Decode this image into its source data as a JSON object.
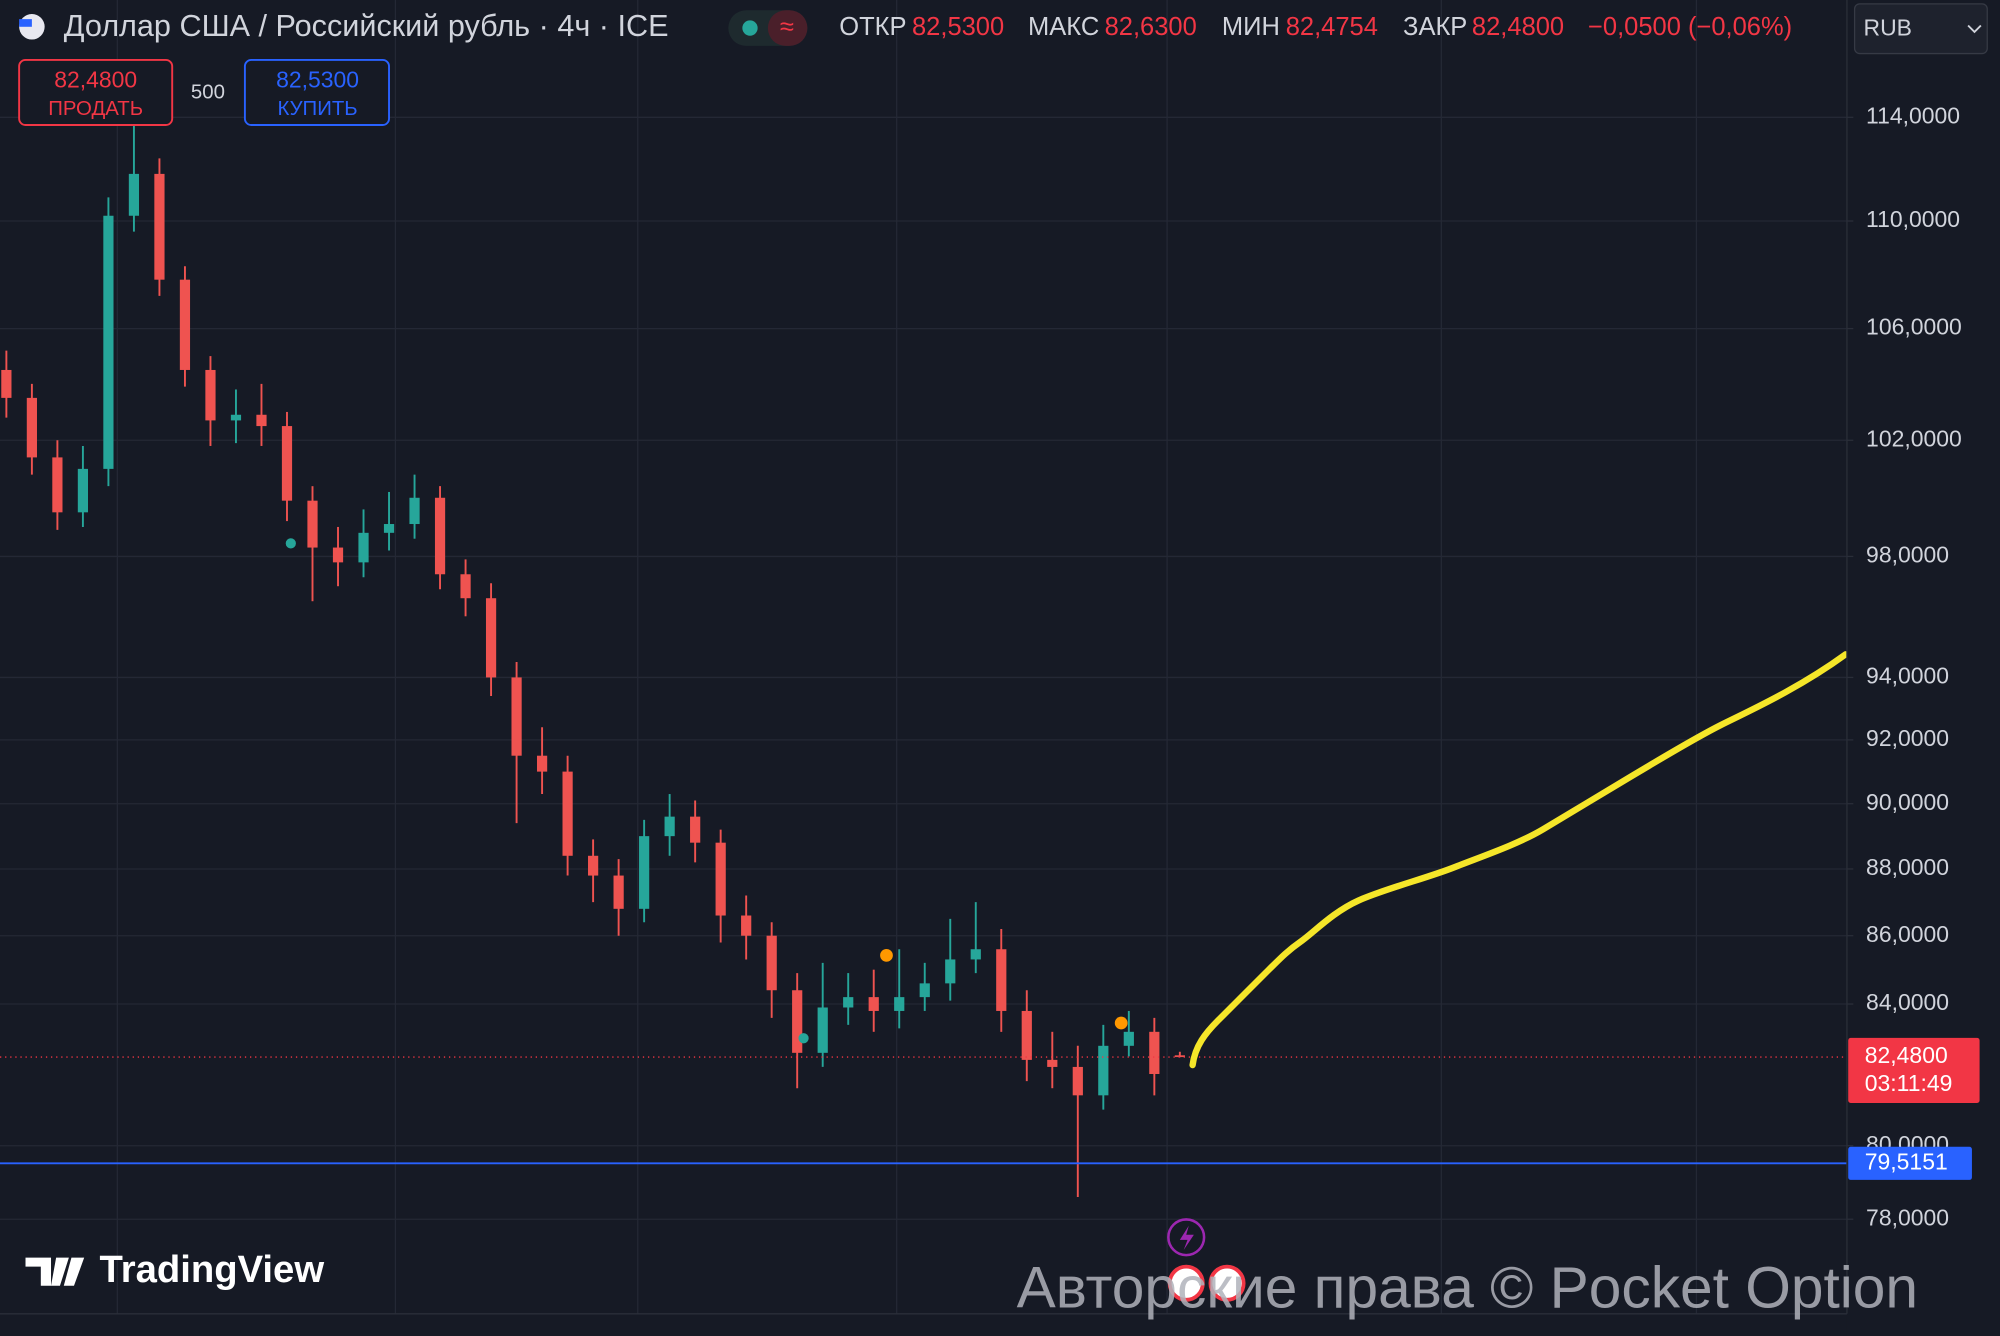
{
  "toolbar": {
    "title": "Доллар США / Российский рубль · 4ч · ICE",
    "ohlc": [
      {
        "label": "ОТКР",
        "value": "82,5300"
      },
      {
        "label": "МАКС",
        "value": "82,6300"
      },
      {
        "label": "МИН",
        "value": "82,4754"
      },
      {
        "label": "ЗАКР",
        "value": "82,4800"
      }
    ],
    "change": "−0,0500 (−0,06%)",
    "currency": "RUB",
    "sell": {
      "price": "82,4800",
      "label": "ПРОДАТЬ"
    },
    "quantity": "500",
    "buy": {
      "price": "82,5300",
      "label": "КУПИТЬ"
    },
    "logo": "TradingView",
    "watermark": "Авторские права © Pocket Option"
  },
  "chart_data": {
    "type": "candlestick",
    "log_scale": true,
    "grid": true,
    "up_color": "#26a69a",
    "down_color": "#ef5350",
    "categories": [
      null,
      null,
      null,
      null,
      null,
      null,
      null,
      null,
      null,
      null,
      null,
      null,
      null,
      null,
      null,
      null,
      null,
      null,
      null,
      null,
      null,
      null,
      null,
      null,
      null,
      null,
      null,
      null,
      null,
      null,
      null,
      null,
      null,
      null,
      null,
      null,
      null,
      null,
      null,
      null,
      null,
      null,
      null,
      null,
      null,
      null,
      null
    ],
    "open": [
      104.5,
      103.5,
      101.4,
      99.5,
      101.0,
      110.2,
      111.8,
      107.8,
      104.5,
      102.7,
      102.9,
      102.5,
      99.9,
      98.3,
      97.8,
      98.8,
      99.1,
      100.0,
      97.4,
      96.6,
      94.0,
      91.5,
      91.0,
      88.4,
      87.8,
      86.8,
      89.0,
      89.6,
      88.8,
      86.6,
      86.0,
      84.4,
      82.6,
      83.9,
      84.2,
      83.8,
      84.2,
      84.6,
      85.3,
      85.6,
      83.8,
      82.4,
      82.2,
      81.4,
      82.8,
      83.2,
      82.53
    ],
    "high": [
      105.2,
      104.0,
      102.0,
      101.8,
      110.9,
      114.0,
      112.4,
      108.3,
      105.0,
      103.8,
      104.0,
      103.0,
      100.4,
      99.0,
      99.6,
      100.2,
      100.8,
      100.4,
      97.9,
      97.1,
      94.5,
      92.4,
      91.5,
      88.9,
      88.3,
      89.5,
      90.3,
      90.1,
      89.2,
      87.2,
      86.4,
      84.9,
      85.2,
      84.9,
      85.0,
      85.6,
      85.2,
      86.5,
      87.0,
      86.2,
      84.4,
      83.2,
      82.8,
      83.4,
      83.8,
      83.6,
      82.63
    ],
    "low": [
      102.8,
      100.8,
      98.9,
      99.0,
      100.4,
      109.6,
      107.2,
      103.9,
      101.8,
      101.9,
      101.8,
      99.2,
      96.5,
      97.0,
      97.3,
      98.2,
      98.6,
      96.9,
      96.0,
      93.4,
      89.4,
      90.3,
      87.8,
      87.0,
      86.0,
      86.4,
      88.4,
      88.2,
      85.8,
      85.3,
      83.6,
      81.6,
      82.2,
      83.4,
      83.2,
      83.3,
      83.8,
      84.1,
      84.9,
      83.2,
      81.8,
      81.6,
      78.6,
      81.0,
      82.5,
      81.4,
      82.4754
    ],
    "close": [
      103.5,
      101.4,
      99.5,
      101.0,
      110.2,
      111.8,
      107.8,
      104.5,
      102.7,
      102.9,
      102.5,
      99.9,
      98.3,
      97.8,
      98.8,
      99.1,
      100.0,
      97.4,
      96.6,
      94.0,
      91.5,
      91.0,
      88.4,
      87.8,
      86.8,
      89.0,
      89.6,
      88.8,
      86.6,
      86.0,
      84.4,
      82.6,
      83.9,
      84.2,
      83.8,
      84.2,
      84.6,
      85.3,
      85.6,
      83.8,
      82.4,
      82.2,
      81.4,
      82.8,
      83.2,
      82.0,
      82.48
    ],
    "ylim": [
      75.5,
      118.7
    ],
    "yticks": [
      {
        "value": 78,
        "label": "78,0000"
      },
      {
        "value": 80,
        "label": "80,0000"
      },
      {
        "value": 84,
        "label": "84,0000"
      },
      {
        "value": 86,
        "label": "86,0000"
      },
      {
        "value": 88,
        "label": "88,0000"
      },
      {
        "value": 90,
        "label": "90,0000"
      },
      {
        "value": 92,
        "label": "92,0000"
      },
      {
        "value": 94,
        "label": "94,0000"
      },
      {
        "value": 98,
        "label": "98,0000"
      },
      {
        "value": 102,
        "label": "102,0000"
      },
      {
        "value": 106,
        "label": "106,0000"
      },
      {
        "value": 110,
        "label": "110,0000"
      },
      {
        "value": 114,
        "label": "114,0000"
      }
    ],
    "last_price": {
      "value": 82.48,
      "label": "82,4800",
      "countdown": "03:11:49",
      "color": "#f23645"
    },
    "alert_line": {
      "value": 79.5151,
      "label": "79,5151",
      "color": "#2962ff"
    }
  }
}
